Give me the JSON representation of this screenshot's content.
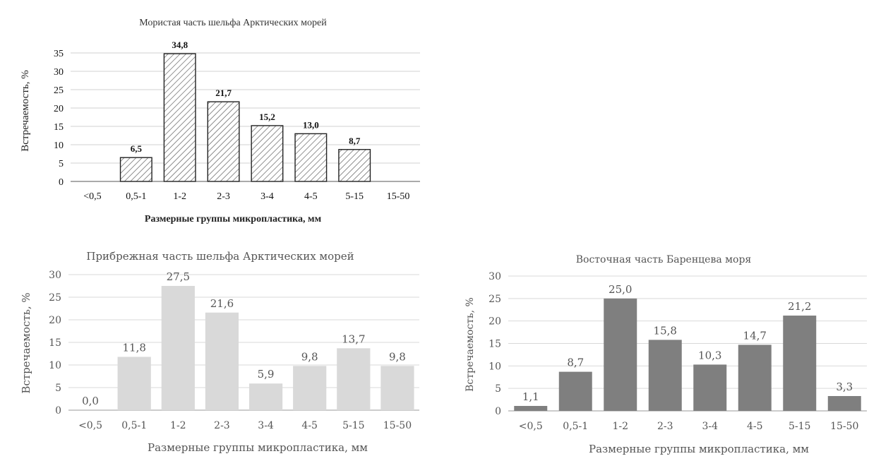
{
  "chart_data": [
    {
      "type": "bar",
      "title": "Мористая часть шельфа Арктических морей",
      "xlabel": "Размерные группы микропластика, мм",
      "ylabel": "Встречаемость, %",
      "categories": [
        "<0,5",
        "0,5-1",
        "1-2",
        "2-3",
        "3-4",
        "4-5",
        "5-15",
        "15-50"
      ],
      "values": [
        null,
        6.5,
        34.8,
        21.7,
        15.2,
        13.0,
        8.7,
        null
      ],
      "value_labels": [
        null,
        "6,5",
        "34,8",
        "21,7",
        "15,2",
        "13,0",
        "8,7",
        null
      ],
      "yticks": [
        0,
        5,
        10,
        15,
        20,
        25,
        30,
        35
      ],
      "ylim": [
        0,
        35
      ],
      "grid": true,
      "bar_style": "hatched",
      "bar_color": "#ffffff"
    },
    {
      "type": "bar",
      "title": "Прибрежная часть шельфа Арктических морей",
      "xlabel": "Размерные группы микропластика, мм",
      "ylabel": "Встречаемость, %",
      "categories": [
        "<0,5",
        "0,5-1",
        "1-2",
        "2-3",
        "3-4",
        "4-5",
        "5-15",
        "15-50"
      ],
      "values": [
        0.0,
        11.8,
        27.5,
        21.6,
        5.9,
        9.8,
        13.7,
        9.8
      ],
      "value_labels": [
        "0,0",
        "11,8",
        "27,5",
        "21,6",
        "5,9",
        "9,8",
        "13,7",
        "9,8"
      ],
      "yticks": [
        0,
        5,
        10,
        15,
        20,
        25,
        30
      ],
      "ylim": [
        0,
        30
      ],
      "grid": true,
      "bar_style": "solid",
      "bar_color": "#d9d9d9"
    },
    {
      "type": "bar",
      "title": "Восточная часть Баренцева моря",
      "xlabel": "Размерные группы микропластика, мм",
      "ylabel": "Встречаемость, %",
      "categories": [
        "<0,5",
        "0,5-1",
        "1-2",
        "2-3",
        "3-4",
        "4-5",
        "5-15",
        "15-50"
      ],
      "values": [
        1.1,
        8.7,
        25.0,
        15.8,
        10.3,
        14.7,
        21.2,
        3.3
      ],
      "value_labels": [
        "1,1",
        "8,7",
        "25,0",
        "15,8",
        "10,3",
        "14,7",
        "21,2",
        "3,3"
      ],
      "yticks": [
        0,
        5,
        10,
        15,
        20,
        25,
        30
      ],
      "ylim": [
        0,
        30
      ],
      "grid": true,
      "bar_style": "solid",
      "bar_color": "#7f7f7f"
    }
  ]
}
